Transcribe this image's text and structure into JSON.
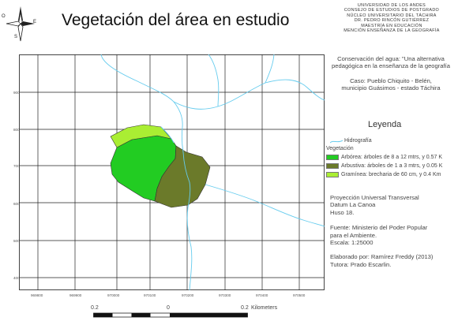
{
  "title": "Vegetación del área en estudio",
  "compass": {
    "north": "N",
    "south": "S",
    "east": "E",
    "west": "O"
  },
  "institution": [
    "UNIVERSIDAD DE LOS ANDES",
    "CONSEJO DE ESTUDIOS DE POSTGRADO",
    "NÚCLEO UNIVERSITARIO DEL TÁCHIRA",
    "DR. PEDRO RINCÓN GUTIÉRREZ",
    "MAESTRÍA EN EDUCACIÓN",
    "MENCIÓN ENSEÑANZA DE LA GEOGRAFÍA"
  ],
  "project": {
    "line1": "Conservación del agua: \"Una alternativa",
    "line2": "pedagógica en la enseñanza de la geografía",
    "case1": "Caso: Pueblo Chiquito - Belén,",
    "case2": "municipio Guásimos - estado Táchira"
  },
  "legend": {
    "title": "Leyenda",
    "hydro_label": "Hidrografía",
    "veg_label": "Vegetación",
    "items": [
      {
        "label": "Arbórea: árboles de 8 a 12 mtrs, y 0.57 K",
        "color": "#22cc22"
      },
      {
        "label": "Arbustiva: árboles de 1 a 3 mtrs, y 0.05 K",
        "color": "#6b7a2a"
      },
      {
        "label": "Gramínea: brecharia de 60 cm, y 0.4 Km",
        "color": "#aaee33"
      }
    ]
  },
  "info": {
    "proj1": "Proyección Universal Transversal",
    "proj2": "Datum La Canoa",
    "proj3": "Huso 18.",
    "src1": "Fuente: Ministerio del Poder Popular",
    "src2": "para el Ambiente.",
    "src3": "Escala: 1:25000",
    "auth1": "Elaborado por: Ramírez Freddy (2013)",
    "auth2": "Tutora: Prado Escarlin."
  },
  "x_ticks": [
    "969800",
    "969900",
    "970000",
    "970100",
    "970200",
    "970300",
    "970400",
    "970500"
  ],
  "y_ticks": [
    "900",
    "800",
    "700",
    "600",
    "500",
    "400"
  ],
  "scale": {
    "left": "0.2",
    "mid": "0",
    "right": "0.2",
    "unit": "Kilometers"
  },
  "colors": {
    "hydro": "#66ccee",
    "grid": "#222222",
    "arborea": "#22cc22",
    "arbustiva": "#6b7a2a",
    "graminea": "#aaee33"
  }
}
